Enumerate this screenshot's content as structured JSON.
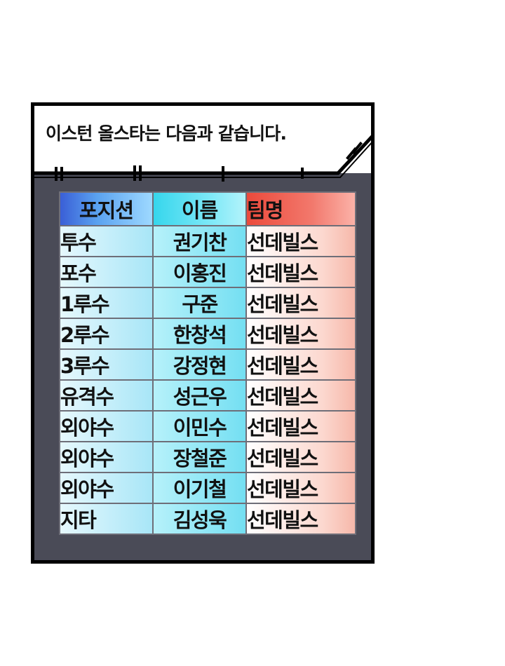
{
  "caption": "이스턴 올스타는 다음과 같습니다.",
  "colors": {
    "panel_bg": "#4a4b57",
    "header_position": "#3a5fd6",
    "header_name": "#36d6ec",
    "header_team": "#ec4a3c",
    "cell_name": "#74dff2",
    "cell_team": "#fcd8cf"
  },
  "table": {
    "headers": {
      "position": "포지션",
      "name": "이름",
      "team": "팀명"
    },
    "rows": [
      {
        "position": "투수",
        "name": "권기찬",
        "team": "선데빌스"
      },
      {
        "position": "포수",
        "name": "이홍진",
        "team": "선데빌스"
      },
      {
        "position": "1루수",
        "name": "구준",
        "team": "선데빌스"
      },
      {
        "position": "2루수",
        "name": "한창석",
        "team": "선데빌스"
      },
      {
        "position": "3루수",
        "name": "강정현",
        "team": "선데빌스"
      },
      {
        "position": "유격수",
        "name": "성근우",
        "team": "선데빌스"
      },
      {
        "position": "외야수",
        "name": "이민수",
        "team": "선데빌스"
      },
      {
        "position": "외야수",
        "name": "장철준",
        "team": "선데빌스"
      },
      {
        "position": "외야수",
        "name": "이기철",
        "team": "선데빌스"
      },
      {
        "position": "지타",
        "name": "김성욱",
        "team": "선데빌스"
      }
    ]
  }
}
